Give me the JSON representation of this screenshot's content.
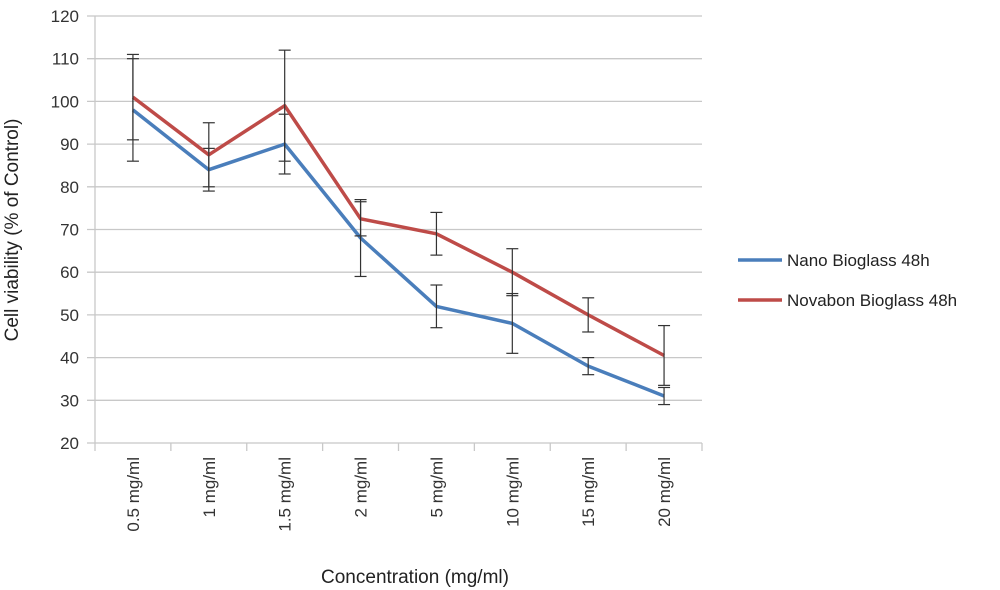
{
  "chart_data": {
    "type": "line",
    "title": "",
    "xlabel": "Concentration (mg/ml)",
    "ylabel": "Cell viability (% of Control)",
    "ylim": [
      20,
      120
    ],
    "yticks": [
      20,
      30,
      40,
      50,
      60,
      70,
      80,
      90,
      100,
      110,
      120
    ],
    "grid": "horizontal",
    "legend_position": "right",
    "categories": [
      "0.5 mg/ml",
      "1 mg/ml",
      "1.5 mg/ml",
      "2 mg/ml",
      "5 mg/ml",
      "10 mg/ml",
      "15 mg/ml",
      "20 mg/ml"
    ],
    "series": [
      {
        "name": "Nano Bioglass 48h",
        "color": "#4a7ebb",
        "values": [
          98,
          84,
          90,
          68,
          52,
          48,
          38,
          31
        ],
        "error": [
          12,
          5,
          7,
          9,
          5,
          7,
          2,
          2
        ]
      },
      {
        "name": "Novabon Bioglass 48h",
        "color": "#be4b48",
        "values": [
          101,
          87.5,
          99,
          72.5,
          69,
          60,
          50,
          40.5
        ],
        "error": [
          10,
          7.5,
          13,
          4,
          5,
          5.5,
          4,
          7
        ]
      }
    ]
  }
}
